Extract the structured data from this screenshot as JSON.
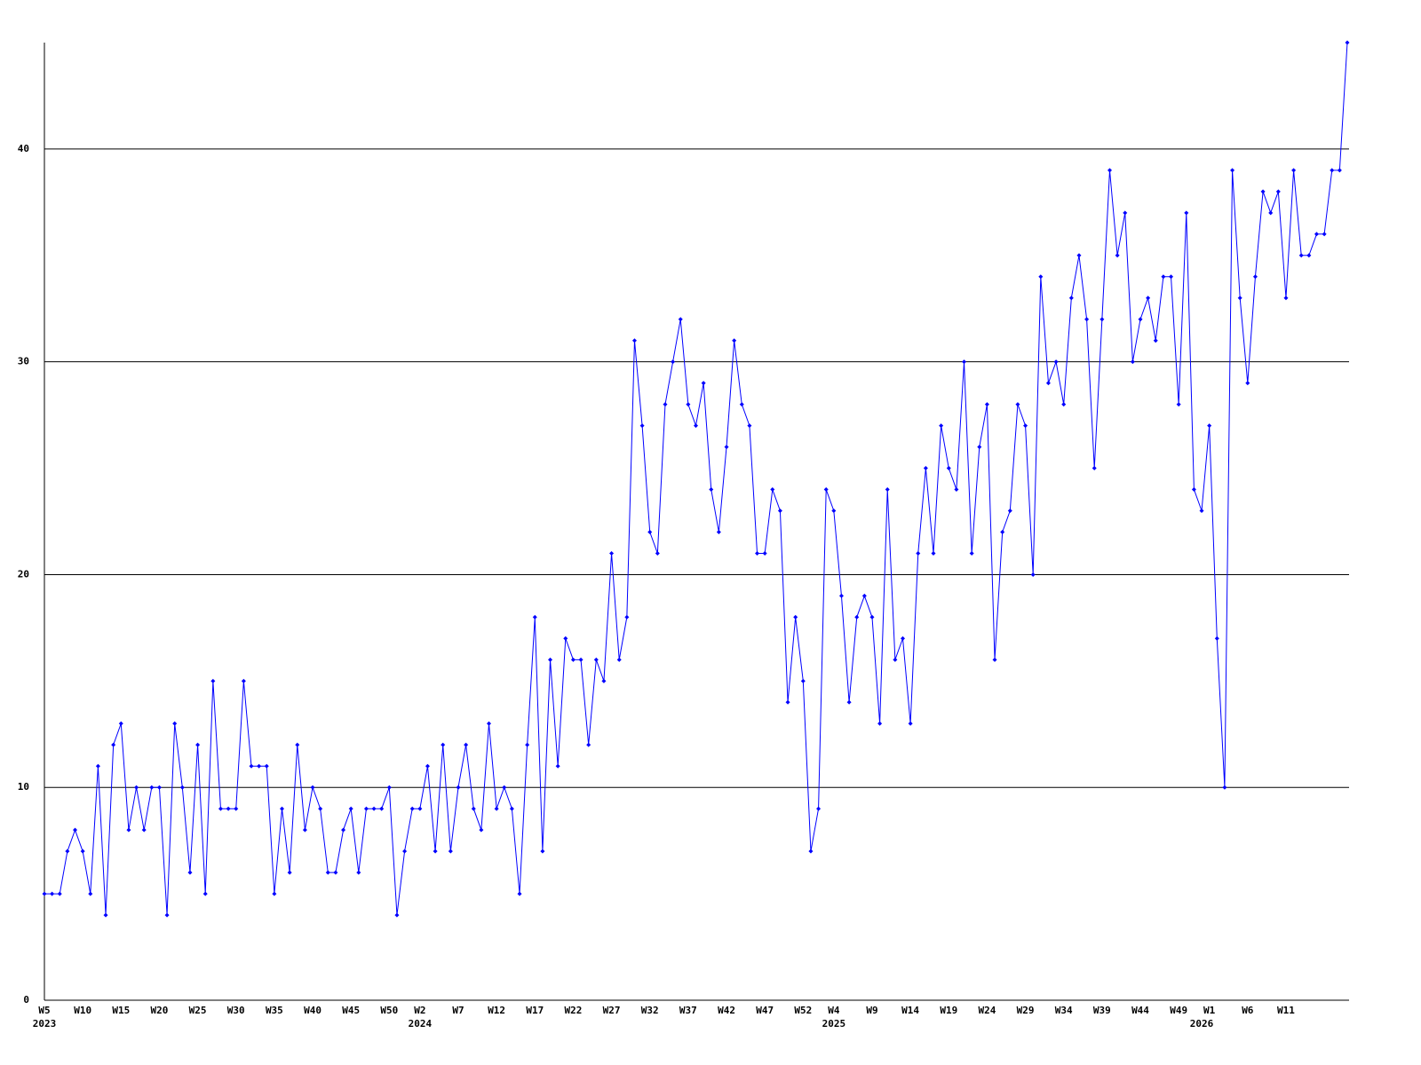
{
  "chart_data": {
    "type": "line",
    "categories": [
      "W5",
      null,
      null,
      null,
      null,
      "W10",
      null,
      null,
      null,
      null,
      "W15",
      null,
      null,
      null,
      null,
      "W20",
      null,
      null,
      null,
      null,
      "W25",
      null,
      null,
      null,
      null,
      "W30",
      null,
      null,
      null,
      null,
      "W35",
      null,
      null,
      null,
      null,
      "W40",
      null,
      null,
      null,
      null,
      "W45",
      null,
      null,
      null,
      null,
      "W50",
      null,
      null,
      null,
      "W2",
      null,
      null,
      null,
      null,
      "W7",
      null,
      null,
      null,
      null,
      "W12",
      null,
      null,
      null,
      null,
      "W17",
      null,
      null,
      null,
      null,
      "W22",
      null,
      null,
      null,
      null,
      "W27",
      null,
      null,
      null,
      null,
      "W32",
      null,
      null,
      null,
      null,
      "W37",
      null,
      null,
      null,
      null,
      "W42",
      null,
      null,
      null,
      null,
      "W47",
      null,
      null,
      null,
      null,
      "W52",
      null,
      null,
      null,
      "W4",
      null,
      null,
      null,
      null,
      "W9",
      null,
      null,
      null,
      null,
      "W14",
      null,
      null,
      null,
      null,
      "W19",
      null,
      null,
      null,
      null,
      "W24",
      null,
      null,
      null,
      null,
      "W29",
      null,
      null,
      null,
      null,
      "W34",
      null,
      null,
      null,
      null,
      "W39",
      null,
      null,
      null,
      null,
      "W44",
      null,
      null,
      null,
      null,
      "W49",
      null,
      null,
      null,
      "W1",
      null,
      null,
      null,
      null,
      "W6",
      null,
      null,
      null,
      null,
      "W11",
      null,
      null,
      null,
      null,
      null,
      null,
      null,
      null
    ],
    "category_years": [
      "2023",
      null,
      null,
      null,
      null,
      null,
      null,
      null,
      null,
      null,
      null,
      null,
      null,
      null,
      null,
      null,
      null,
      null,
      null,
      null,
      null,
      null,
      null,
      null,
      null,
      null,
      null,
      null,
      null,
      null,
      null,
      null,
      null,
      null,
      null,
      null,
      null,
      null,
      null,
      null,
      null,
      null,
      null,
      null,
      null,
      null,
      null,
      null,
      null,
      "2024",
      null,
      null,
      null,
      null,
      null,
      null,
      null,
      null,
      null,
      null,
      null,
      null,
      null,
      null,
      null,
      null,
      null,
      null,
      null,
      null,
      null,
      null,
      null,
      null,
      null,
      null,
      null,
      null,
      null,
      null,
      null,
      null,
      null,
      null,
      null,
      null,
      null,
      null,
      null,
      null,
      null,
      null,
      null,
      null,
      null,
      null,
      null,
      null,
      null,
      null,
      null,
      null,
      null,
      "2025",
      null,
      null,
      null,
      null,
      null,
      null,
      null,
      null,
      null,
      null,
      null,
      null,
      null,
      null,
      null,
      null,
      null,
      null,
      null,
      null,
      null,
      null,
      null,
      null,
      null,
      null,
      null,
      null,
      null,
      null,
      null,
      null,
      null,
      null,
      null,
      null,
      null,
      null,
      null,
      null,
      null,
      null,
      null,
      null,
      null,
      null,
      null,
      "2026",
      null,
      null,
      null,
      null,
      null,
      null,
      null,
      null,
      null,
      null,
      null,
      null,
      null,
      null,
      null,
      null,
      null,
      null
    ],
    "series": [
      {
        "color": "#0000ff",
        "values": [
          5,
          5,
          5,
          7,
          8,
          7,
          5,
          11,
          4,
          12,
          13,
          8,
          10,
          8,
          10,
          10,
          4,
          13,
          10,
          6,
          12,
          5,
          15,
          9,
          9,
          9,
          15,
          11,
          11,
          11,
          5,
          9,
          6,
          12,
          8,
          10,
          9,
          6,
          6,
          8,
          9,
          6,
          9,
          9,
          9,
          10,
          4,
          7,
          9,
          9,
          11,
          7,
          12,
          7,
          10,
          12,
          9,
          8,
          13,
          9,
          10,
          9,
          5,
          12,
          18,
          7,
          16,
          11,
          17,
          16,
          16,
          12,
          16,
          15,
          21,
          16,
          18,
          31,
          27,
          22,
          21,
          28,
          30,
          32,
          28,
          27,
          29,
          24,
          22,
          26,
          31,
          28,
          27,
          21,
          21,
          24,
          23,
          14,
          18,
          15,
          7,
          9,
          24,
          23,
          19,
          14,
          18,
          19,
          18,
          13,
          24,
          16,
          17,
          13,
          21,
          25,
          21,
          27,
          25,
          24,
          30,
          21,
          26,
          28,
          16,
          22,
          23,
          28,
          27,
          20,
          34,
          29,
          30,
          28,
          33,
          35,
          32,
          25,
          32,
          39,
          35,
          37,
          30,
          32,
          33,
          31,
          34,
          34,
          28,
          37,
          24,
          23,
          27,
          17,
          10,
          39,
          33,
          29,
          34,
          38,
          37,
          38,
          33,
          39,
          35,
          35,
          36,
          36,
          39,
          39,
          45
        ]
      }
    ],
    "ylim": [
      0,
      45
    ],
    "yticks": [
      0,
      10,
      20,
      30,
      40
    ],
    "grid": true
  }
}
